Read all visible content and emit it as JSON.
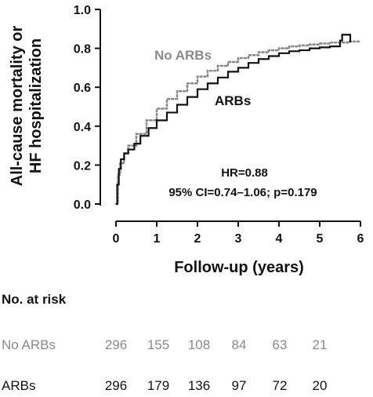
{
  "chart_data": {
    "type": "line",
    "xlabel": "Follow-up (years)",
    "ylabel_lines": [
      "All-cause mortality or",
      "HF hospitalization"
    ],
    "xlim": [
      0,
      6
    ],
    "ylim": [
      0,
      1.0
    ],
    "x_ticks": [
      "0",
      "1",
      "2",
      "3",
      "4",
      "5",
      "6"
    ],
    "y_ticks": [
      "0.0",
      "0.2",
      "0.4",
      "0.6",
      "0.8",
      "1.0"
    ],
    "grid": false,
    "series": [
      {
        "name": "No ARBs",
        "color": "#8a8a8a",
        "style": "dotted",
        "x": [
          0,
          0.05,
          0.1,
          0.2,
          0.3,
          0.5,
          0.75,
          1.0,
          1.25,
          1.5,
          1.75,
          2.0,
          2.25,
          2.5,
          2.75,
          3.0,
          3.25,
          3.5,
          3.75,
          4.0,
          4.25,
          4.5,
          4.75,
          5.0,
          5.25,
          5.5,
          5.7,
          6.0
        ],
        "y": [
          0,
          0.15,
          0.21,
          0.26,
          0.3,
          0.36,
          0.43,
          0.49,
          0.54,
          0.58,
          0.62,
          0.655,
          0.685,
          0.71,
          0.73,
          0.75,
          0.765,
          0.78,
          0.79,
          0.8,
          0.81,
          0.815,
          0.82,
          0.825,
          0.83,
          0.83,
          0.835,
          0.835
        ]
      },
      {
        "name": "ARBs",
        "color": "#111111",
        "style": "solid",
        "x": [
          0,
          0.03,
          0.07,
          0.12,
          0.2,
          0.3,
          0.45,
          0.6,
          0.8,
          1.0,
          1.25,
          1.5,
          1.75,
          2.0,
          2.25,
          2.5,
          2.75,
          3.0,
          3.25,
          3.5,
          3.75,
          4.0,
          4.25,
          4.5,
          4.75,
          5.0,
          5.25,
          5.5,
          5.55,
          5.7,
          5.75
        ],
        "y": [
          0,
          0.1,
          0.18,
          0.23,
          0.26,
          0.28,
          0.31,
          0.35,
          0.39,
          0.43,
          0.47,
          0.51,
          0.55,
          0.59,
          0.62,
          0.65,
          0.68,
          0.7,
          0.725,
          0.745,
          0.76,
          0.775,
          0.785,
          0.79,
          0.8,
          0.805,
          0.81,
          0.84,
          0.87,
          0.87,
          0.83
        ]
      }
    ],
    "series_labels": {
      "no_arbs": "No ARBs",
      "arbs": "ARBs"
    },
    "annotation": {
      "hr": "HR=0.88",
      "ci": "95% CI=0.74–1.06; p=0.179"
    }
  },
  "risk_table": {
    "title": "No. at risk",
    "rows": [
      {
        "label": "No ARBs",
        "values": [
          "296",
          "155",
          "108",
          "84",
          "63",
          "21"
        ]
      },
      {
        "label": "ARBs",
        "values": [
          "296",
          "179",
          "136",
          "97",
          "72",
          "20"
        ]
      }
    ]
  }
}
